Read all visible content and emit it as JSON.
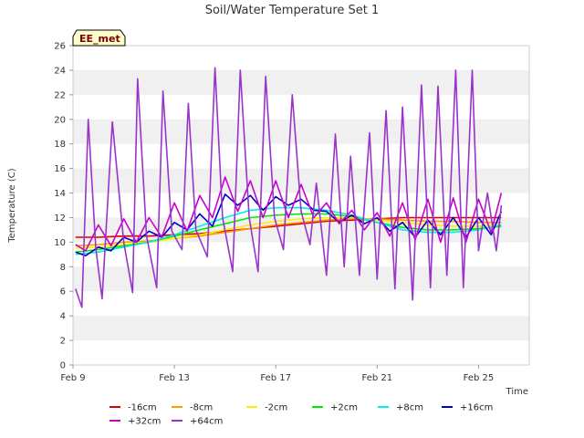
{
  "chart_data": {
    "type": "line",
    "title": "Soil/Water Temperature Set 1",
    "xlabel": "Time",
    "ylabel": "Temperature (C)",
    "site_tag": "EE_met",
    "ylim": [
      0,
      26
    ],
    "yticks": [
      0,
      2,
      4,
      6,
      8,
      10,
      12,
      14,
      16,
      18,
      20,
      22,
      24,
      26
    ],
    "xlim": [
      9,
      27
    ],
    "xticks": [
      {
        "value": 9,
        "label": "Feb 9"
      },
      {
        "value": 13,
        "label": "Feb 13"
      },
      {
        "value": 17,
        "label": "Feb 17"
      },
      {
        "value": 21,
        "label": "Feb 21"
      },
      {
        "value": 25,
        "label": "Feb 25"
      }
    ],
    "grid": "horizontal bands",
    "legend_placement": "bottom",
    "series": [
      {
        "name": "-16cm",
        "color": "#dd0000",
        "x": [
          9.1,
          10,
          11,
          12,
          13,
          14,
          15,
          16,
          17,
          18,
          19,
          20,
          21,
          22,
          23,
          24,
          25,
          25.9
        ],
        "y": [
          10.4,
          10.4,
          10.5,
          10.5,
          10.6,
          10.7,
          10.9,
          11.1,
          11.3,
          11.5,
          11.7,
          11.8,
          11.9,
          12.0,
          12.0,
          12.0,
          12.0,
          12.0
        ]
      },
      {
        "name": "-8cm",
        "color": "#ff9900",
        "x": [
          9.1,
          10,
          11,
          12,
          13,
          14,
          15,
          16,
          17,
          18,
          19,
          20,
          21,
          22,
          23,
          24,
          25,
          25.9
        ],
        "y": [
          9.7,
          9.8,
          10.0,
          10.1,
          10.3,
          10.5,
          10.8,
          11.1,
          11.4,
          11.6,
          11.8,
          11.9,
          11.9,
          11.8,
          11.7,
          11.7,
          11.6,
          11.6
        ]
      },
      {
        "name": "-2cm",
        "color": "#ffee00",
        "x": [
          9.1,
          10,
          11,
          12,
          13,
          14,
          15,
          16,
          17,
          18,
          19,
          20,
          21,
          22,
          23,
          24,
          25,
          25.9
        ],
        "y": [
          9.5,
          9.6,
          9.8,
          10.0,
          10.3,
          10.6,
          11.0,
          11.4,
          11.7,
          11.9,
          12.0,
          12.0,
          11.8,
          11.6,
          11.4,
          11.3,
          11.3,
          11.4
        ]
      },
      {
        "name": "+2cm",
        "color": "#00ee00",
        "x": [
          9.1,
          10,
          11,
          12,
          13,
          14,
          15,
          16,
          17,
          18,
          19,
          20,
          21,
          22,
          23,
          24,
          25,
          25.9
        ],
        "y": [
          9.2,
          9.4,
          9.7,
          10.0,
          10.5,
          11.0,
          11.5,
          12.0,
          12.2,
          12.3,
          12.3,
          12.1,
          11.6,
          11.2,
          11.0,
          11.0,
          11.1,
          11.3
        ]
      },
      {
        "name": "+8cm",
        "color": "#00eeee",
        "x": [
          9.1,
          10,
          11,
          12,
          13,
          14,
          15,
          16,
          17,
          18,
          19,
          20,
          21,
          22,
          23,
          24,
          25,
          25.9
        ],
        "y": [
          9.0,
          9.2,
          9.6,
          10.0,
          10.6,
          11.3,
          12.0,
          12.6,
          12.8,
          12.8,
          12.6,
          12.2,
          11.6,
          11.0,
          10.8,
          10.8,
          11.0,
          11.4
        ]
      },
      {
        "name": "+16cm",
        "color": "#0000cc",
        "x": [
          9.1,
          9.5,
          10,
          10.5,
          11,
          11.5,
          12,
          12.5,
          13,
          13.5,
          14,
          14.5,
          15,
          15.5,
          16,
          16.5,
          17,
          17.5,
          18,
          18.5,
          19,
          19.5,
          20,
          20.5,
          21,
          21.5,
          22,
          22.5,
          23,
          23.5,
          24,
          24.5,
          25,
          25.5,
          25.9
        ],
        "y": [
          9.2,
          8.9,
          9.6,
          9.3,
          10.4,
          10.0,
          10.9,
          10.4,
          11.6,
          11.0,
          12.3,
          11.3,
          13.9,
          13.0,
          13.8,
          12.6,
          13.7,
          13.0,
          13.5,
          12.6,
          12.5,
          11.6,
          12.2,
          11.5,
          12.0,
          10.9,
          11.6,
          10.4,
          11.8,
          10.6,
          12.0,
          10.4,
          12.0,
          10.6,
          12.5
        ]
      },
      {
        "name": "+32cm",
        "color": "#cc00cc",
        "x": [
          9.1,
          9.5,
          10,
          10.5,
          11,
          11.5,
          12,
          12.5,
          13,
          13.5,
          14,
          14.5,
          15,
          15.5,
          16,
          16.5,
          17,
          17.5,
          18,
          18.5,
          19,
          19.5,
          20,
          20.5,
          21,
          21.5,
          22,
          22.5,
          23,
          23.5,
          24,
          24.5,
          25,
          25.5,
          25.9
        ],
        "y": [
          9.8,
          9.3,
          11.4,
          9.7,
          11.9,
          10.0,
          12.0,
          10.4,
          13.2,
          10.9,
          13.8,
          12.0,
          15.3,
          12.5,
          15.0,
          12.0,
          15.0,
          12.0,
          14.7,
          12.0,
          13.2,
          11.5,
          12.6,
          11.0,
          12.4,
          10.5,
          13.2,
          10.2,
          13.5,
          10.0,
          13.6,
          10.0,
          13.5,
          10.8,
          14.0
        ]
      },
      {
        "name": "+64cm",
        "color": "#9933cc",
        "x": [
          9.1,
          9.35,
          9.6,
          9.9,
          10.15,
          10.55,
          11.0,
          11.35,
          11.55,
          11.9,
          12.3,
          12.55,
          12.9,
          13.3,
          13.55,
          13.85,
          14.3,
          14.6,
          14.9,
          15.3,
          15.6,
          15.95,
          16.3,
          16.6,
          16.95,
          17.3,
          17.65,
          18.0,
          18.35,
          18.6,
          19.0,
          19.35,
          19.7,
          19.95,
          20.3,
          20.7,
          21.0,
          21.35,
          21.7,
          22.0,
          22.4,
          22.75,
          23.1,
          23.4,
          23.75,
          24.1,
          24.4,
          24.75,
          25.0,
          25.35,
          25.7,
          25.9
        ],
        "y": [
          6.2,
          4.7,
          20.0,
          9.5,
          5.4,
          19.8,
          10.0,
          5.9,
          23.3,
          10.5,
          6.3,
          22.3,
          10.9,
          9.4,
          21.3,
          11.0,
          8.8,
          24.2,
          12.0,
          7.6,
          24.0,
          12.0,
          7.6,
          23.5,
          12.0,
          9.4,
          22.0,
          12.5,
          9.8,
          14.8,
          7.3,
          18.8,
          8.0,
          17.0,
          7.3,
          18.9,
          7.0,
          20.7,
          6.2,
          21.0,
          5.3,
          22.8,
          6.3,
          22.7,
          7.3,
          24.0,
          6.3,
          24.0,
          9.3,
          14.0,
          9.3,
          13.0
        ]
      }
    ]
  }
}
